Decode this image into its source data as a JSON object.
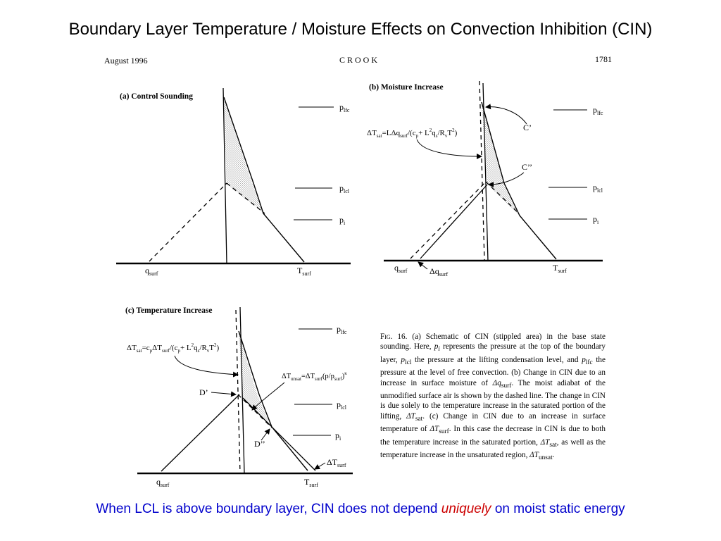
{
  "slide": {
    "title": "Boundary Layer Temperature / Moisture Effects on Convection Inhibition (CIN)",
    "footer_before": "When LCL is above boundary layer, CIN does not depend ",
    "footer_em": "uniquely",
    "footer_after": " on moist static energy"
  },
  "page_header": {
    "left": "August 1996",
    "center": "CROOK",
    "right": "1781"
  },
  "panels": {
    "a": {
      "title": "(a) Control Sounding"
    },
    "b": {
      "title": "(b) Moisture Increase"
    },
    "c": {
      "title": "(c) Temperature Increase"
    }
  },
  "levels": {
    "lfc": {
      "main": "p",
      "sub": "lfc"
    },
    "lcl": {
      "main": "p",
      "sub": "lcl"
    },
    "i": {
      "main": "p",
      "sub": "i"
    }
  },
  "surface_labels": {
    "q_main": "q",
    "q_sub": "surf",
    "t_main": "T",
    "t_sub": "surf",
    "dq": "Δq",
    "dq_sub": "surf",
    "dt_surf": "ΔT",
    "dt_surf_sub": "surf"
  },
  "markers": {
    "c_prime": "C’",
    "c_dprime": "C’’",
    "d_prime": "D’",
    "d_dprime": "D’’"
  },
  "equations": {
    "b_sat": {
      "dT": "ΔT",
      "sat": "sat",
      "eq1": "=LΔq",
      "surf": "surf",
      "open": "/(c",
      "p": "p",
      "plusL": "+ L",
      "two": "2",
      "q": "q",
      "s": "s",
      "slashR": "/R",
      "v": "v",
      "T": "T",
      "close": ")"
    },
    "c_sat": {
      "dT": "ΔT",
      "sat": "sat",
      "eq1": "=c",
      "p1": "p",
      "dT2": "ΔT",
      "surf": "surf",
      "open": "/(c",
      "p2": "p",
      "plusL": "+ L",
      "two": "2",
      "q": "q",
      "s": "s",
      "slashR": "/R",
      "v": "v",
      "T": "T",
      "close": ")"
    },
    "c_unsat": {
      "dT": "ΔT",
      "unsat": "unsat",
      "eq1": "=ΔT",
      "surf": "surf",
      "open": "(p/p",
      "surf2": "surf",
      "close": ")",
      "kappa": "κ"
    }
  },
  "caption": {
    "fig_label": "Fig. 16.",
    "t1": " (a) Schematic of CIN (stippled area) in the base state sounding. Here, ",
    "pi": "p",
    "pi_sub": "i",
    "t2": " represents the pressure at the top of the boundary layer, ",
    "plcl": "p",
    "plcl_sub": "lcl",
    "t3": " the pressure at the lifting condensation level, and ",
    "plfc": "p",
    "plfc_sub": "lfc",
    "t4": " the pressure at the level of free convection. (b) Change in CIN due to an increase in surface moisture of ",
    "dq": "Δq",
    "dq_sub": "surf",
    "t5": ". The moist adiabat of the unmodified surface air is shown by the dashed line. The change in CIN is due solely to the temperature increase in the saturated portion of the lifting, ",
    "dtsat": "ΔT",
    "dtsat_sub": "sat",
    "t6": ". (c) Change in CIN due to an increase in surface temperature of ",
    "dtsurf": "ΔT",
    "dtsurf_sub": "surf",
    "t7": ". In this case the decrease in CIN is due to both the temperature increase in the saturated portion, ",
    "dtsat2": "ΔT",
    "dtsat2_sub": "sat",
    "t8": ", as well as the temperature increase in the unsaturated region, ",
    "dtunsat": "ΔT",
    "dtunsat_sub": "unsat",
    "t9": "."
  }
}
